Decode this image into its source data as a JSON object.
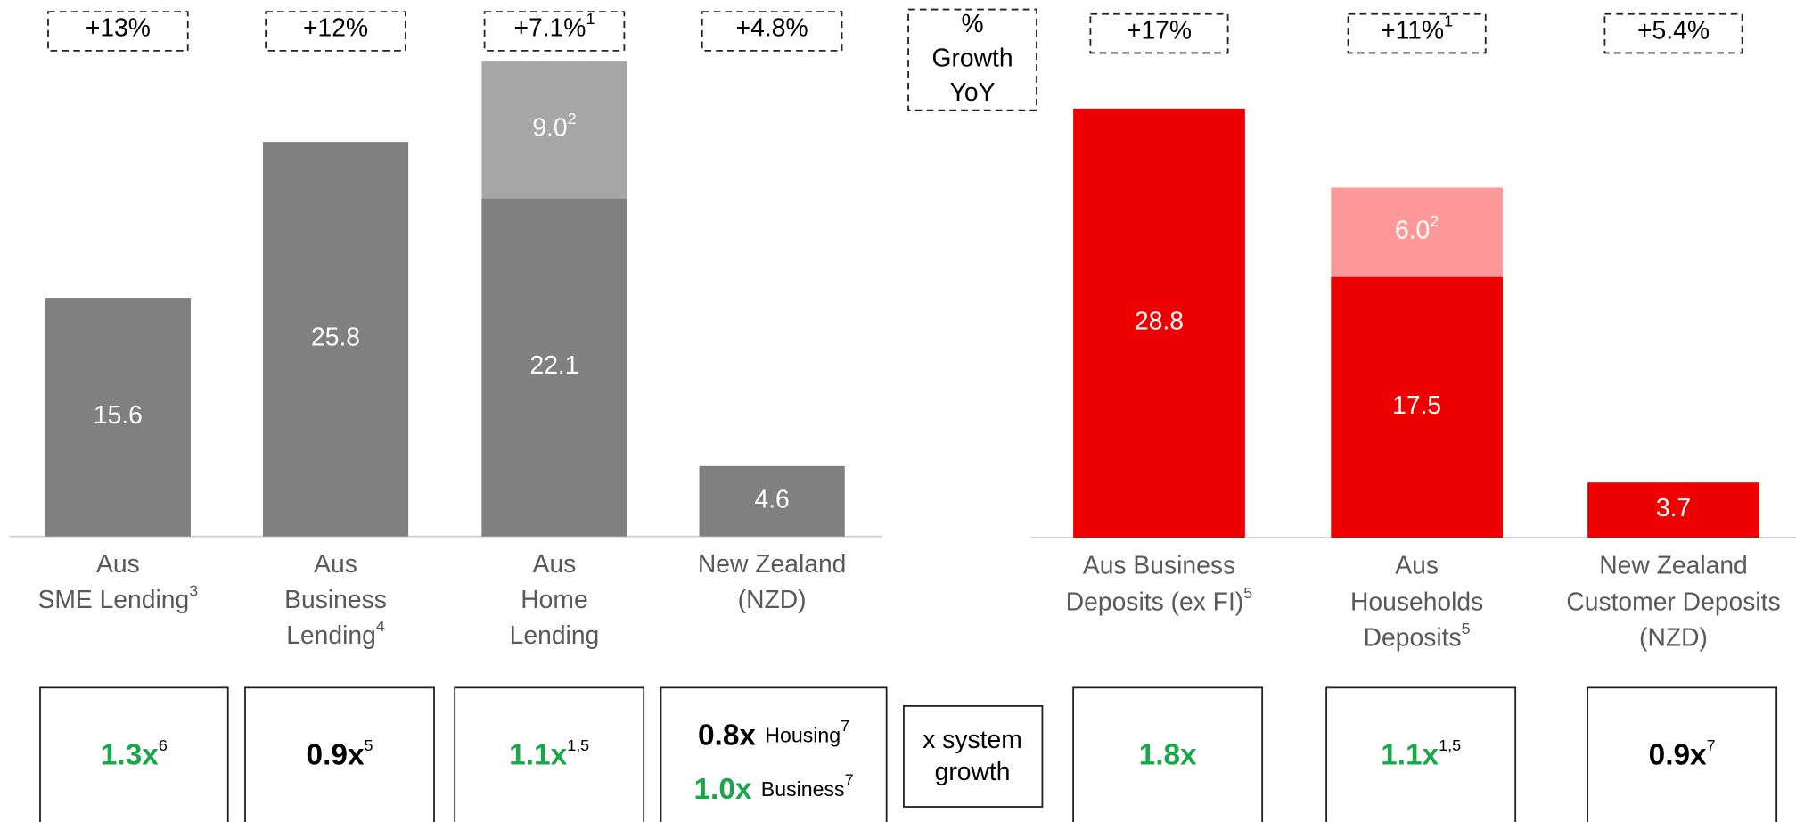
{
  "chart_data": [
    {
      "type": "bar",
      "stacked": true,
      "categories": [
        [
          "Aus",
          "SME Lending"
        ],
        [
          "Aus",
          "Business",
          "Lending"
        ],
        [
          "Aus",
          "Home",
          "Lending"
        ],
        [
          "New Zealand",
          "(NZD)"
        ]
      ],
      "category_notes": [
        "3",
        "4",
        null,
        null
      ],
      "series": [
        {
          "color": "#808080",
          "values": [
            15.6,
            25.8,
            22.1,
            4.6
          ]
        },
        {
          "color": "#a6a6a6",
          "values": [
            null,
            null,
            9.0,
            null
          ],
          "value_labels": [
            null,
            null,
            "9.0",
            null
          ],
          "value_notes": [
            null,
            null,
            "2",
            null
          ]
        }
      ],
      "growth": [
        "+13%",
        "+12%",
        "+7.1%",
        "+4.8%"
      ],
      "growth_notes": [
        null,
        null,
        "1",
        null
      ],
      "system_growth": [
        [
          {
            "value": "1.3x",
            "note": "6",
            "color": "#1aa64a"
          }
        ],
        [
          {
            "value": "0.9x",
            "note": "5",
            "color": "#000000"
          }
        ],
        [
          {
            "value": "1.1x",
            "note": "1,5",
            "color": "#1aa64a"
          }
        ],
        [
          {
            "value": "0.8x",
            "label": "Housing",
            "note": "7",
            "color": "#000000"
          },
          {
            "value": "1.0x",
            "label": "Business",
            "note": "7",
            "color": "#1aa64a"
          }
        ]
      ]
    },
    {
      "type": "bar",
      "stacked": true,
      "categories": [
        [
          "Aus Business",
          "Deposits (ex FI)"
        ],
        [
          "Aus",
          "Households",
          "Deposits"
        ],
        [
          "New Zealand",
          "Customer Deposits",
          "(NZD)"
        ]
      ],
      "category_notes": [
        "5",
        "5",
        null
      ],
      "series": [
        {
          "color": "#ee0000",
          "values": [
            28.8,
            17.5,
            3.7
          ]
        },
        {
          "color": "#ff9999",
          "values": [
            null,
            6.0,
            null
          ],
          "value_labels": [
            null,
            "6.0",
            null
          ],
          "value_notes": [
            null,
            "2",
            null
          ]
        }
      ],
      "growth": [
        "+17%",
        "+11%",
        "+5.4%"
      ],
      "growth_notes": [
        null,
        "1",
        null
      ],
      "system_growth": [
        [
          {
            "value": "1.8x",
            "note": null,
            "color": "#1aa64a"
          }
        ],
        [
          {
            "value": "1.1x",
            "note": "1,5",
            "color": "#1aa64a"
          }
        ],
        [
          {
            "value": "0.9x",
            "note": "7",
            "color": "#000000"
          }
        ]
      ]
    }
  ],
  "legend": {
    "growth": [
      "%",
      "Growth",
      "YoY"
    ],
    "system": [
      "x system",
      "growth"
    ]
  }
}
